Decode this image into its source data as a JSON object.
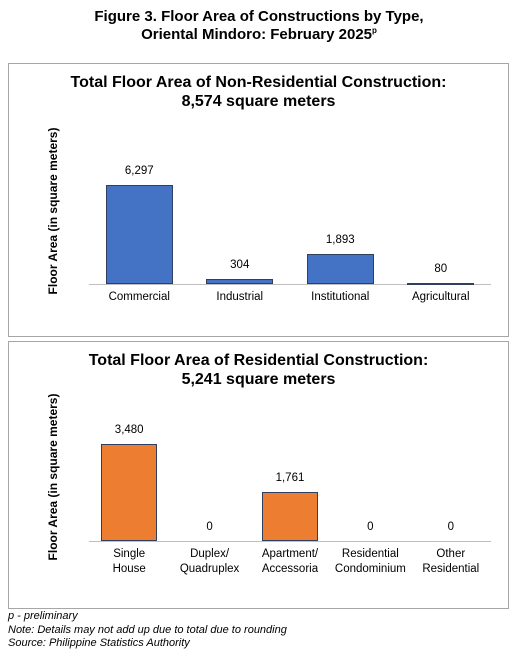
{
  "figure": {
    "title_lines": [
      "Figure 3. Floor Area of Constructions by Type,",
      "Oriental Mindoro: February 2025"
    ],
    "superscript": "p"
  },
  "chart_data": [
    {
      "type": "bar",
      "title": "Total Floor Area of Non-Residential Construction:",
      "subtitle": "8,574 square meters",
      "y_label": "Floor Area (in square meters)",
      "categories": [
        "Commercial",
        "Industrial",
        "Institutional",
        "Agricultural"
      ],
      "values": [
        6297,
        304,
        1893,
        80
      ],
      "value_labels": [
        "6,297",
        "304",
        "1,893",
        "80"
      ],
      "color": "#4472c4",
      "ylim": [
        0,
        10000
      ]
    },
    {
      "type": "bar",
      "title": "Total Floor Area of Residential Construction:",
      "subtitle": "5,241 square meters",
      "y_label": "Floor Area (in square meters)",
      "categories": [
        "Single House",
        "Duplex/ Quadruplex",
        "Apartment/ Accessoria",
        "Residential Condominium",
        "Other Residential"
      ],
      "values": [
        3480,
        0,
        1761,
        0,
        0
      ],
      "value_labels": [
        "3,480",
        "0",
        "1,761",
        "0",
        "0"
      ],
      "color": "#ed7d31",
      "ylim": [
        0,
        5000
      ]
    }
  ],
  "notes": [
    "p - preliminary",
    "Note: Details may not add up due to total due to rounding",
    "Source: Philippine Statistics Authority"
  ]
}
